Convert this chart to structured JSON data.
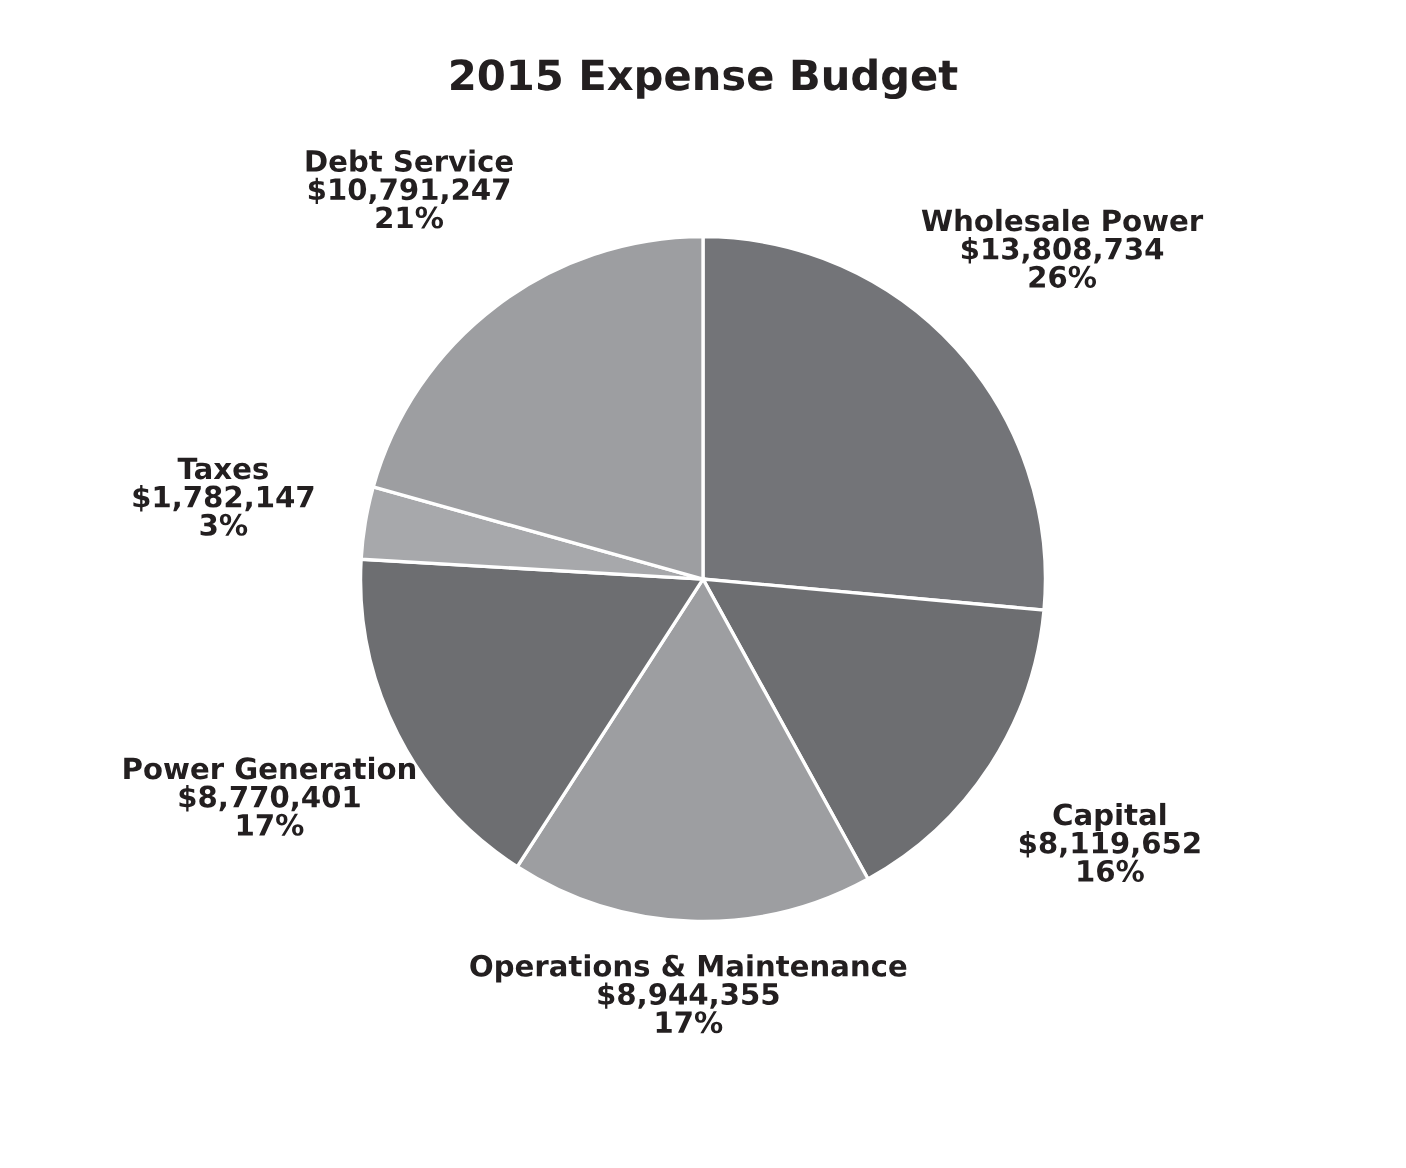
{
  "chart_data": {
    "type": "pie",
    "title": "2015 Expense Budget",
    "categories": [
      "Wholesale Power",
      "Capital",
      "Operations & Maintenance",
      "Power Generation",
      "Taxes",
      "Debt Service"
    ],
    "values": [
      13808734,
      8119652,
      8944355,
      8770401,
      1782147,
      10791247
    ],
    "colors": [
      "#737478",
      "#6d6e71",
      "#9d9ea1",
      "#6d6e71",
      "#a7a8ab",
      "#9d9ea1"
    ],
    "value_labels": [
      "$13,808,734\n26%",
      "$8,119,652\n16%",
      "$8,944,355\n17%",
      "$8,770,401\n17%",
      "$1,782,147\n3%",
      "$10,791,247\n21%"
    ]
  }
}
